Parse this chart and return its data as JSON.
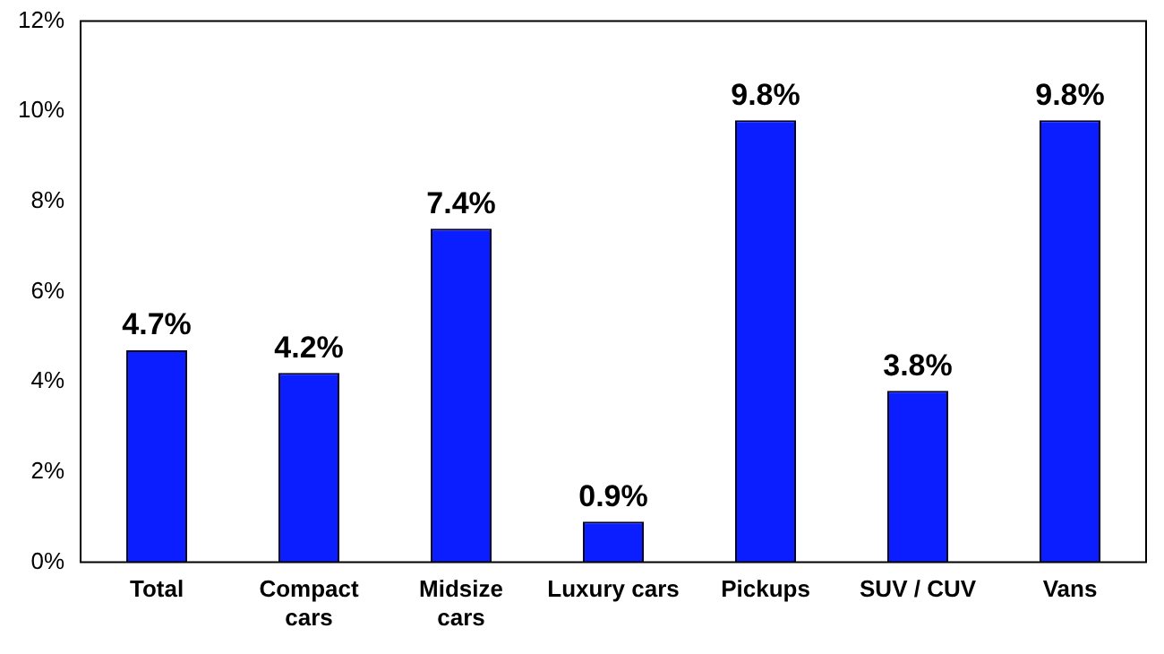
{
  "chart_data": {
    "type": "bar",
    "categories": [
      "Total",
      "Compact\ncars",
      "Midsize\ncars",
      "Luxury cars",
      "Pickups",
      "SUV / CUV",
      "Vans"
    ],
    "values": [
      4.7,
      4.2,
      7.4,
      0.9,
      9.8,
      3.8,
      9.8
    ],
    "value_labels": [
      "4.7%",
      "4.2%",
      "7.4%",
      "0.9%",
      "9.8%",
      "3.8%",
      "9.8%"
    ],
    "color": "#0a1eff",
    "ylim": [
      0,
      12
    ],
    "yticks": [
      {
        "value": 0,
        "label": "0%"
      },
      {
        "value": 2,
        "label": "2%"
      },
      {
        "value": 4,
        "label": "4%"
      },
      {
        "value": 6,
        "label": "6%"
      },
      {
        "value": 8,
        "label": "8%"
      },
      {
        "value": 10,
        "label": "10%"
      },
      {
        "value": 12,
        "label": "12%"
      }
    ],
    "grid": false,
    "legend": false
  }
}
